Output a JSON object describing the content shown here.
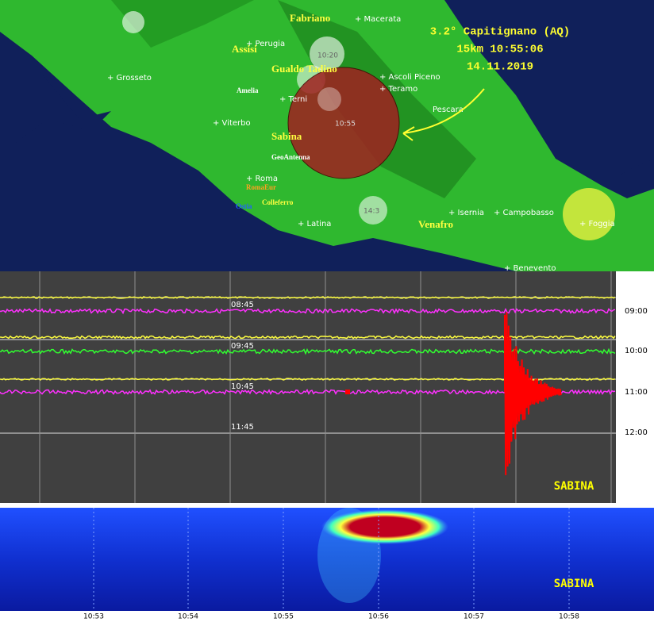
{
  "map": {
    "cities": [
      "+ Macerata",
      "+ Perugia",
      "+ Grosseto",
      "+ Ascoli Piceno",
      "+ Teramo",
      "+ Terni",
      "+ Viterbo",
      "Pescara",
      "+ Roma",
      "+ Latina",
      "+ Isernia",
      "+ Campobasso",
      "+ Foggia",
      "+ Benevento"
    ],
    "stations": [
      "Fabriano",
      "Assisi",
      "Gualdo Tadino",
      "Amelia",
      "Sabina",
      "GeoAntenna",
      "RomaEur",
      "Ostia",
      "Colleferro",
      "Venafro"
    ],
    "event_labels": [
      "10:20",
      "10:55",
      "14:3"
    ],
    "annotation": [
      "3.2° Capitignano (AQ)",
      "15km 10:55:06",
      "14.11.2019"
    ]
  },
  "seismogram": {
    "left_times": [
      "08:45",
      "09:45",
      "10:45",
      "11:45"
    ],
    "right_times": [
      "09:00",
      "10:00",
      "11:00",
      "12:00"
    ],
    "station": "SABINA"
  },
  "spectrogram": {
    "times": [
      "10:53",
      "10:54",
      "10:55",
      "10:56",
      "10:57",
      "10:58"
    ],
    "station": "SABINA"
  }
}
